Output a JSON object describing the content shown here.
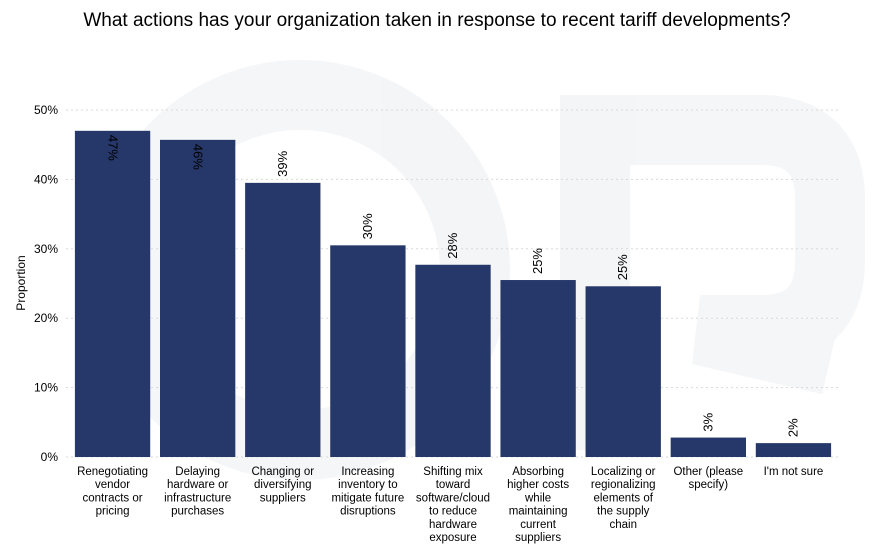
{
  "chart_data": {
    "type": "bar",
    "title": "What actions has your organization taken in response to recent tariff developments?",
    "xlabel": "",
    "ylabel": "Proportion",
    "ylim": [
      0,
      0.5
    ],
    "yticks": [
      0,
      0.1,
      0.2,
      0.3,
      0.4,
      0.5
    ],
    "ytick_labels": [
      "0%",
      "10%",
      "20%",
      "30%",
      "40%",
      "50%"
    ],
    "categories": [
      [
        "Renegotiating",
        "vendor",
        "contracts or",
        "pricing"
      ],
      [
        "Delaying",
        "hardware or",
        "infrastructure",
        "purchases"
      ],
      [
        "Changing or",
        "diversifying",
        "suppliers"
      ],
      [
        "Increasing",
        "inventory to",
        "mitigate future",
        "disruptions"
      ],
      [
        "Shifting mix",
        "toward",
        "software/cloud",
        "to reduce",
        "hardware",
        "exposure"
      ],
      [
        "Absorbing",
        "higher costs",
        "while",
        "maintaining",
        "current",
        "suppliers"
      ],
      [
        "Localizing or",
        "regionalizing",
        "elements of",
        "the supply",
        "chain"
      ],
      [
        "Other (please",
        "specify)"
      ],
      [
        "I'm not sure"
      ]
    ],
    "values": [
      0.47,
      0.457,
      0.395,
      0.305,
      0.277,
      0.255,
      0.246,
      0.028,
      0.02
    ],
    "data_labels": [
      "47%",
      "46%",
      "39%",
      "30%",
      "28%",
      "25%",
      "25%",
      "3%",
      "2%"
    ],
    "bar_color": "#263769",
    "grid": true
  }
}
